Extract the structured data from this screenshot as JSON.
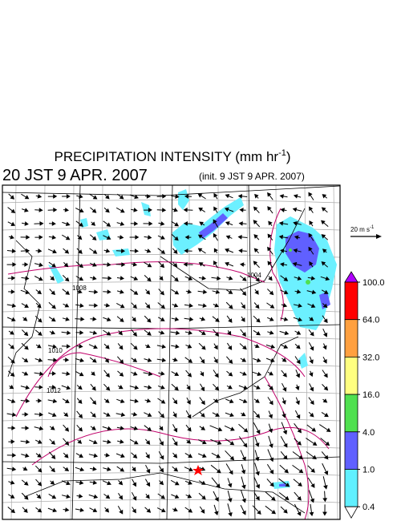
{
  "header": {
    "title_main": "PRECIPITATION INTENSITY (mm hr",
    "title_exp": "-1",
    "title_end": ")",
    "valid_time": "20 JST 9 APR. 2007",
    "init_time": "(init. 9 JST 9 APR. 2007)"
  },
  "vector_scale": {
    "label_main": "20 m s",
    "label_exp": "-1"
  },
  "map": {
    "isobar_labels": [
      "1008",
      "1010",
      "1012",
      "1004"
    ]
  },
  "colorbar": {
    "ticks": [
      {
        "value": 100,
        "label": "100.0"
      },
      {
        "value": 64,
        "label": "64.0"
      },
      {
        "value": 32,
        "label": "32.0"
      },
      {
        "value": 16,
        "label": "16.0"
      },
      {
        "value": 4,
        "label": "4.0"
      },
      {
        "value": 1,
        "label": "1.0"
      },
      {
        "value": 0.4,
        "label": "0.4"
      }
    ],
    "colors": [
      "#b000ff",
      "#ff0000",
      "#ffa040",
      "#ffff80",
      "#50e050",
      "#6060ff",
      "#60f0ff",
      "#ffffff"
    ]
  }
}
